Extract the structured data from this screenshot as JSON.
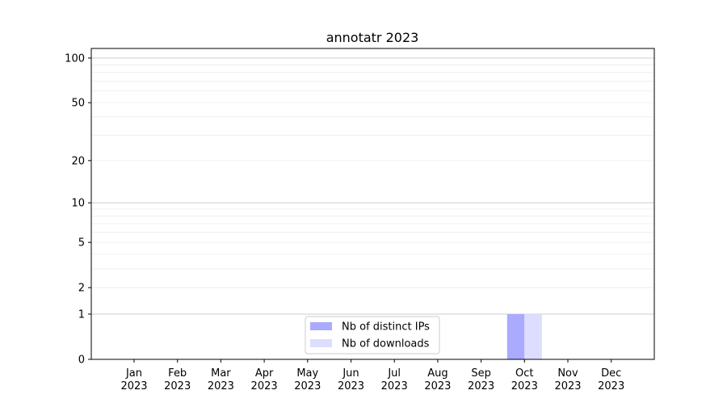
{
  "chart_data": {
    "type": "bar",
    "title": "annotatr 2023",
    "xlabel": "",
    "ylabel": "",
    "yscale": "symlog",
    "ylim": [
      0,
      116
    ],
    "yticks": [
      0,
      1,
      2,
      5,
      10,
      20,
      50,
      100
    ],
    "ytick_labels": [
      "0",
      "1",
      "2",
      "5",
      "10",
      "20",
      "50",
      "100"
    ],
    "grid": true,
    "legend_position": "lower-center",
    "categories": [
      {
        "month": "Jan",
        "year": "2023"
      },
      {
        "month": "Feb",
        "year": "2023"
      },
      {
        "month": "Mar",
        "year": "2023"
      },
      {
        "month": "Apr",
        "year": "2023"
      },
      {
        "month": "May",
        "year": "2023"
      },
      {
        "month": "Jun",
        "year": "2023"
      },
      {
        "month": "Jul",
        "year": "2023"
      },
      {
        "month": "Aug",
        "year": "2023"
      },
      {
        "month": "Sep",
        "year": "2023"
      },
      {
        "month": "Oct",
        "year": "2023"
      },
      {
        "month": "Nov",
        "year": "2023"
      },
      {
        "month": "Dec",
        "year": "2023"
      }
    ],
    "series": [
      {
        "name": "Nb of distinct IPs",
        "color": "#aaaaff",
        "values": [
          0,
          0,
          0,
          0,
          0,
          0,
          0,
          0,
          0,
          1,
          0,
          0
        ]
      },
      {
        "name": "Nb of downloads",
        "color": "#ddddff",
        "values": [
          0,
          0,
          0,
          0,
          0,
          0,
          0,
          0,
          0,
          1,
          0,
          0
        ]
      }
    ]
  }
}
